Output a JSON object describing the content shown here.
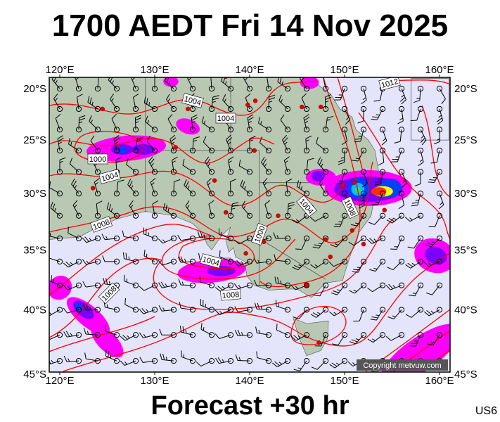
{
  "header": {
    "title": "1700 AEDT Fri 14 Nov 2025"
  },
  "footer": {
    "forecast": "Forecast +30 hr",
    "model_tag": "US6"
  },
  "map": {
    "copyright": "Copyright metvuw.com",
    "lon_labels": [
      "120°E",
      "130°E",
      "140°E",
      "150°E",
      "160°E"
    ],
    "lat_labels": [
      "20°S",
      "25°S",
      "30°S",
      "35°S",
      "40°S",
      "45°S"
    ],
    "isobar_labels": [
      "1012",
      "1004",
      "1004",
      "1000",
      "1004",
      "1008",
      "1004",
      "1000",
      "1004",
      "1008",
      "1008",
      "1008"
    ],
    "colors": {
      "ocean": "#e4e4fa",
      "land": "#b9c8b2",
      "isobar": "#ff0000",
      "rain_light": "#ff00ff",
      "rain_mid": "#7b00ff",
      "rain_heavy": "#0040ff",
      "rain_peak": "#ff3000"
    }
  }
}
